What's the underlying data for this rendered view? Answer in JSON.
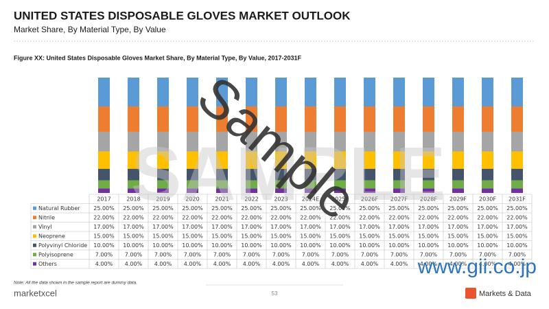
{
  "header": {
    "title": "UNITED STATES DISPOSABLE GLOVES MARKET OUTLOOK",
    "subtitle": "Market Share, By Material Type, By Value"
  },
  "chart_data": {
    "type": "stacked-bar",
    "title": "Figure XX: United States Disposable Gloves Market Share, By Material Type, By Value, 2017-2031F",
    "categories": [
      "2017",
      "2018",
      "2019",
      "2020",
      "2021",
      "2022",
      "2023",
      "2024E",
      "2025F",
      "2026F",
      "2027F",
      "2028F",
      "2029F",
      "2030F",
      "2031F"
    ],
    "series": [
      {
        "name": "Natural Rubber",
        "color": "#5b9bd5",
        "values": [
          25,
          25,
          25,
          25,
          25,
          25,
          25,
          25,
          25,
          25,
          25,
          25,
          25,
          25,
          25
        ],
        "value_labels": [
          "25.00%",
          "25.00%",
          "25.00%",
          "25.00%",
          "25.00%",
          "25.00%",
          "25.00%",
          "25.00%",
          "25.00%",
          "25.00%",
          "25.00%",
          "25.00%",
          "25.00%",
          "25.00%",
          "25.00%"
        ]
      },
      {
        "name": "Nitrile",
        "color": "#ed7d31",
        "values": [
          22,
          22,
          22,
          22,
          22,
          22,
          22,
          22,
          22,
          22,
          22,
          22,
          22,
          22,
          22
        ],
        "value_labels": [
          "22.00%",
          "22.00%",
          "22.00%",
          "22.00%",
          "22.00%",
          "22.00%",
          "22.00%",
          "22.00%",
          "22.00%",
          "22.00%",
          "22.00%",
          "22.00%",
          "22.00%",
          "22.00%",
          "22.00%"
        ]
      },
      {
        "name": "Vinyl",
        "color": "#a5a5a5",
        "values": [
          17,
          17,
          17,
          17,
          17,
          17,
          17,
          17,
          17,
          17,
          17,
          17,
          17,
          17,
          17
        ],
        "value_labels": [
          "17.00%",
          "17.00%",
          "17.00%",
          "17.00%",
          "17.00%",
          "17.00%",
          "17.00%",
          "17.00%",
          "17.00%",
          "17.00%",
          "17.00%",
          "17.00%",
          "17.00%",
          "17.00%",
          "17.00%"
        ]
      },
      {
        "name": "Neoprene",
        "color": "#ffc000",
        "values": [
          15,
          15,
          15,
          15,
          15,
          15,
          15,
          15,
          15,
          15,
          15,
          15,
          15,
          15,
          15
        ],
        "value_labels": [
          "15.00%",
          "15.00%",
          "15.00%",
          "15.00%",
          "15.00%",
          "15.00%",
          "15.00%",
          "15.00%",
          "15.00%",
          "15.00%",
          "15.00%",
          "15.00%",
          "15.00%",
          "15.00%",
          "15.00%"
        ]
      },
      {
        "name": "Polyvinyl Chloride",
        "color": "#44546a",
        "values": [
          10,
          10,
          10,
          10,
          10,
          10,
          10,
          10,
          10,
          10,
          10,
          10,
          10,
          10,
          10
        ],
        "value_labels": [
          "10.00%",
          "10.00%",
          "10.00%",
          "10.00%",
          "10.00%",
          "10.00%",
          "10.00%",
          "10.00%",
          "10.00%",
          "10.00%",
          "10.00%",
          "10.00%",
          "10.00%",
          "10.00%",
          "10.00%"
        ]
      },
      {
        "name": "Polyisoprene",
        "color": "#70ad47",
        "values": [
          7,
          7,
          7,
          7,
          7,
          7,
          7,
          7,
          7,
          7,
          7,
          7,
          7,
          7,
          7
        ],
        "value_labels": [
          "7.00%",
          "7.00%",
          "7.00%",
          "7.00%",
          "7.00%",
          "7.00%",
          "7.00%",
          "7.00%",
          "7.00%",
          "7.00%",
          "7.00%",
          "7.00%",
          "7.00%",
          "7.00%",
          "7.00%"
        ]
      },
      {
        "name": "Others",
        "color": "#7030a0",
        "values": [
          4,
          4,
          4,
          4,
          4,
          4,
          4,
          4,
          4,
          4,
          4,
          4,
          4,
          4,
          4
        ],
        "value_labels": [
          "4.00%",
          "4.00%",
          "4.00%",
          "4.00%",
          "4.00%",
          "4.00%",
          "4.00%",
          "4.00%",
          "4.00%",
          "4.00%",
          "4.00%",
          "4.00%",
          "4.00%",
          "4.00%",
          "4.00%"
        ]
      }
    ]
  },
  "watermark": {
    "large": "SAMPLE",
    "diagonal": "Sample",
    "site": "www.gii.co.jp"
  },
  "footer": {
    "note": "Note: All the data shown in the sample report are dummy data.",
    "logo_left": "marketxcel",
    "page": "53",
    "logo_right": "Markets & Data"
  }
}
